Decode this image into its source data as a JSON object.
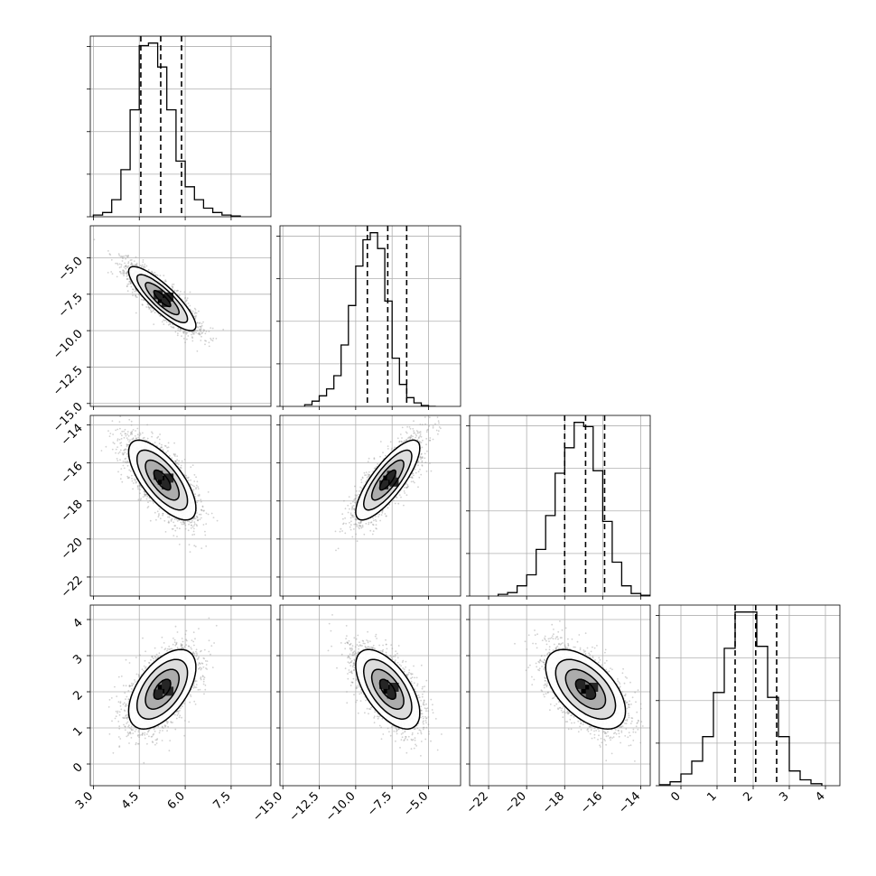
{
  "chart_data": {
    "type": "corner",
    "title": "",
    "grid": true,
    "params": [
      {
        "index": 0,
        "range": [
          2.9,
          8.8
        ],
        "ticks": [
          "3.0",
          "4.5",
          "6.0",
          "7.5"
        ],
        "tick_values": [
          3.0,
          4.5,
          6.0,
          7.5
        ],
        "quantiles": [
          4.55,
          5.2,
          5.88
        ]
      },
      {
        "index": 1,
        "range": [
          -15.2,
          -2.8
        ],
        "ticks": [
          "-15.0",
          "-12.5",
          "-10.0",
          "-7.5",
          "-5.0"
        ],
        "tick_values": [
          -15.0,
          -12.5,
          -10.0,
          -7.5,
          -5.0
        ],
        "quantiles": [
          -9.2,
          -7.8,
          -6.5
        ]
      },
      {
        "index": 2,
        "range": [
          -23.0,
          -13.5
        ],
        "ticks": [
          "-22",
          "-20",
          "-18",
          "-16",
          "-14"
        ],
        "tick_values": [
          -22,
          -20,
          -18,
          -16,
          -14
        ],
        "quantiles": [
          -18.0,
          -16.9,
          -15.9
        ]
      },
      {
        "index": 3,
        "range": [
          -0.6,
          4.4
        ],
        "ticks": [
          "0",
          "1",
          "2",
          "3",
          "4"
        ],
        "tick_values": [
          0,
          1,
          2,
          3,
          4
        ],
        "quantiles": [
          1.5,
          2.07,
          2.65
        ]
      }
    ],
    "histograms": [
      {
        "param": 0,
        "bin_edges": [
          3.0,
          3.3,
          3.6,
          3.9,
          4.2,
          4.5,
          4.8,
          5.1,
          5.4,
          5.7,
          6.0,
          6.3,
          6.6,
          6.9,
          7.2,
          7.5,
          7.8
        ],
        "counts": [
          2,
          5,
          20,
          55,
          125,
          200,
          203,
          175,
          125,
          65,
          35,
          20,
          10,
          5,
          2,
          1
        ]
      },
      {
        "param": 1,
        "bin_edges": [
          -13.5,
          -13.0,
          -12.5,
          -12.0,
          -11.5,
          -11.0,
          -10.5,
          -10.0,
          -9.5,
          -9.0,
          -8.5,
          -8.0,
          -7.5,
          -7.0,
          -6.5,
          -6.0,
          -5.5,
          -5.0,
          -4.5
        ],
        "counts": [
          2,
          6,
          12,
          20,
          35,
          70,
          115,
          160,
          190,
          198,
          180,
          120,
          55,
          25,
          10,
          4,
          1,
          0
        ]
      },
      {
        "param": 2,
        "bin_edges": [
          -21.5,
          -21.0,
          -20.5,
          -20.0,
          -19.5,
          -19.0,
          -18.5,
          -18.0,
          -17.5,
          -17.0,
          -16.5,
          -16.0,
          -15.5,
          -15.0,
          -14.5,
          -14.0,
          -13.5
        ],
        "counts": [
          2,
          4,
          12,
          25,
          55,
          95,
          145,
          175,
          205,
          200,
          148,
          88,
          40,
          12,
          3,
          1
        ]
      },
      {
        "param": 3,
        "bin_edges": [
          -0.6,
          -0.3,
          0.0,
          0.3,
          0.6,
          0.9,
          1.2,
          1.5,
          1.8,
          2.1,
          2.4,
          2.7,
          3.0,
          3.3,
          3.6,
          3.9
        ],
        "counts": [
          1,
          4,
          12,
          25,
          50,
          95,
          140,
          177,
          177,
          142,
          90,
          50,
          15,
          6,
          2
        ]
      }
    ],
    "pairs": [
      {
        "x_param": 0,
        "y_param": 1,
        "mean": [
          5.25,
          -7.8
        ],
        "sd": [
          0.55,
          1.1
        ],
        "corr": -0.85
      },
      {
        "x_param": 0,
        "y_param": 2,
        "mean": [
          5.25,
          -16.9
        ],
        "sd": [
          0.55,
          1.05
        ],
        "corr": -0.7
      },
      {
        "x_param": 1,
        "y_param": 2,
        "mean": [
          -7.8,
          -16.9
        ],
        "sd": [
          1.1,
          1.05
        ],
        "corr": 0.8
      },
      {
        "x_param": 0,
        "y_param": 3,
        "mean": [
          5.25,
          2.07
        ],
        "sd": [
          0.55,
          0.55
        ],
        "corr": 0.55
      },
      {
        "x_param": 1,
        "y_param": 3,
        "mean": [
          -7.8,
          2.07
        ],
        "sd": [
          1.1,
          0.55
        ],
        "corr": -0.6
      },
      {
        "x_param": 2,
        "y_param": 3,
        "mean": [
          -16.9,
          2.07
        ],
        "sd": [
          1.05,
          0.55
        ],
        "corr": -0.55
      }
    ],
    "contour_sigmas": [
      0.5,
      1.0,
      1.5,
      2.0
    ],
    "colors": {
      "line": "#000000",
      "points": "#9a9a9a",
      "grid": "#b0b0b0",
      "density_dark": "#000000",
      "density_light": "#ffffff"
    }
  }
}
